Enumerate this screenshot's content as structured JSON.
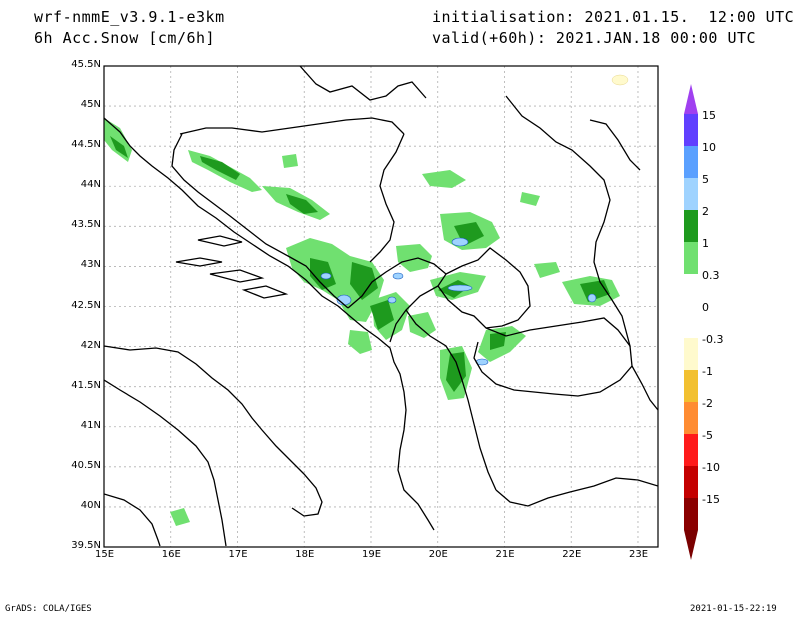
{
  "header": {
    "model": "wrf-nmmE_v3.9.1-e3km",
    "variable": "6h Acc.Snow [cm/6h]",
    "init": "initialisation: 2021.01.15.  12:00 UTC",
    "valid": "valid(+60h): 2021.JAN.18 00:00 UTC"
  },
  "map": {
    "lat_labels": [
      "45.5N",
      "45N",
      "44.5N",
      "44N",
      "43.5N",
      "43N",
      "42.5N",
      "42N",
      "41.5N",
      "41N",
      "40.5N",
      "40N",
      "39.5N"
    ],
    "lon_labels": [
      "15E",
      "16E",
      "17E",
      "18E",
      "19E",
      "20E",
      "21E",
      "22E",
      "23E"
    ],
    "grid": true,
    "lon_range": [
      15,
      23.3
    ],
    "lat_range": [
      39.5,
      45.5
    ]
  },
  "colorbar": {
    "labels": [
      "15",
      "10",
      "5",
      "2",
      "1",
      "0.3",
      "0",
      "-0.3",
      "-1",
      "-2",
      "-5",
      "-10",
      "-15"
    ],
    "colors": [
      "#6040ff",
      "#5aa0ff",
      "#9fd3ff",
      "#1e9a1e",
      "#70e070",
      "#ffffff",
      "#ffffff",
      "#fffacd",
      "#f2c030",
      "#ff8c32",
      "#ff1a1a",
      "#c40000",
      "#8b0000"
    ],
    "top_tip_color": "#a040f0",
    "bottom_tip_color": "#7a0000"
  },
  "footer": {
    "left": "GrADS: COLA/IGES",
    "right": "2021-01-15-22:19"
  }
}
